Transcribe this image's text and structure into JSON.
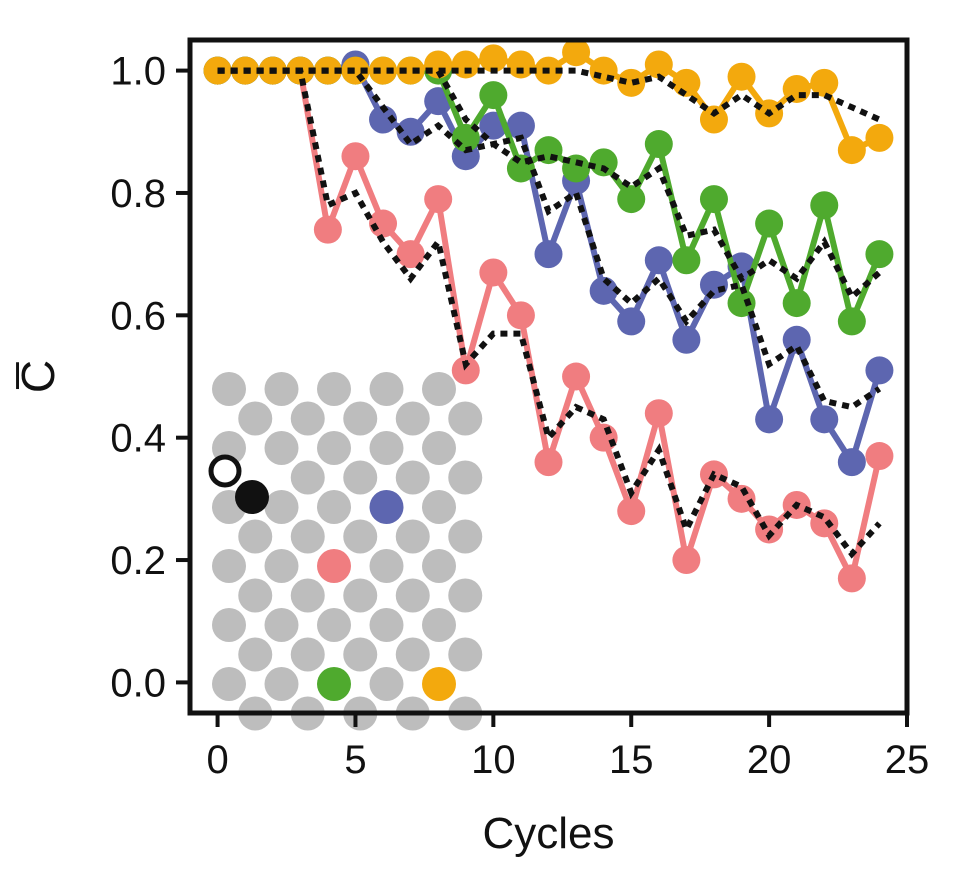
{
  "chart_data": {
    "type": "line",
    "title": "",
    "xlabel": "Cycles",
    "ylabel": "C̅",
    "xlim": [
      -1,
      25
    ],
    "ylim": [
      -0.05,
      1.05
    ],
    "xticks": [
      0,
      5,
      10,
      15,
      20,
      25
    ],
    "yticks": [
      0.0,
      0.2,
      0.4,
      0.6,
      0.8,
      1.0
    ],
    "xtick_labels": [
      "0",
      "5",
      "10",
      "15",
      "20",
      "25"
    ],
    "ytick_labels": [
      "0.0",
      "0.2",
      "0.4",
      "0.6",
      "0.8",
      "1.0"
    ],
    "grid": false,
    "legend": "none",
    "x": [
      0,
      1,
      2,
      3,
      4,
      5,
      6,
      7,
      8,
      9,
      10,
      11,
      12,
      13,
      14,
      15,
      16,
      17,
      18,
      19,
      20,
      21,
      22,
      23,
      24
    ],
    "series": [
      {
        "color": "#f07d80",
        "values": [
          1.0,
          1.0,
          1.0,
          1.0,
          0.74,
          0.86,
          0.75,
          0.7,
          0.79,
          0.51,
          0.67,
          0.6,
          0.36,
          0.5,
          0.4,
          0.28,
          0.44,
          0.2,
          0.34,
          0.3,
          0.25,
          0.29,
          0.26,
          0.17,
          0.37
        ],
        "fit": [
          1.0,
          1.0,
          1.0,
          1.0,
          0.78,
          0.8,
          0.72,
          0.66,
          0.72,
          0.52,
          0.57,
          0.57,
          0.4,
          0.45,
          0.43,
          0.31,
          0.38,
          0.25,
          0.34,
          0.32,
          0.24,
          0.29,
          0.27,
          0.21,
          0.26
        ]
      },
      {
        "color": "#5d66b0",
        "values": [
          1.0,
          1.0,
          1.0,
          1.0,
          1.0,
          1.01,
          0.92,
          0.9,
          0.95,
          0.86,
          0.91,
          0.91,
          0.7,
          0.82,
          0.64,
          0.59,
          0.69,
          0.56,
          0.65,
          0.68,
          0.43,
          0.56,
          0.43,
          0.36,
          0.51
        ],
        "fit": [
          1.0,
          1.0,
          1.0,
          1.0,
          1.0,
          1.0,
          0.94,
          0.88,
          0.91,
          0.87,
          0.88,
          0.89,
          0.77,
          0.8,
          0.66,
          0.62,
          0.66,
          0.59,
          0.64,
          0.65,
          0.52,
          0.55,
          0.46,
          0.45,
          0.48
        ]
      },
      {
        "color": "#4faa2e",
        "values": [
          1.0,
          1.0,
          1.0,
          1.0,
          1.0,
          1.0,
          1.0,
          1.0,
          1.0,
          0.89,
          0.96,
          0.84,
          0.87,
          0.84,
          0.85,
          0.79,
          0.88,
          0.69,
          0.79,
          0.62,
          0.75,
          0.62,
          0.78,
          0.59,
          0.7
        ],
        "fit": [
          1.0,
          1.0,
          1.0,
          1.0,
          1.0,
          1.0,
          1.0,
          1.0,
          1.0,
          0.92,
          0.88,
          0.85,
          0.86,
          0.85,
          0.84,
          0.81,
          0.84,
          0.73,
          0.74,
          0.66,
          0.69,
          0.66,
          0.72,
          0.63,
          0.67
        ]
      },
      {
        "color": "#f3a90d",
        "values": [
          1.0,
          1.0,
          1.0,
          1.0,
          1.0,
          1.0,
          1.0,
          1.0,
          1.01,
          1.01,
          1.02,
          1.01,
          1.0,
          1.03,
          1.0,
          0.98,
          1.01,
          0.98,
          0.92,
          0.99,
          0.93,
          0.97,
          0.98,
          0.87,
          0.89
        ],
        "fit": [
          1.0,
          1.0,
          1.0,
          1.0,
          1.0,
          1.0,
          1.0,
          1.0,
          1.0,
          1.0,
          1.0,
          1.0,
          1.0,
          1.0,
          0.99,
          0.98,
          0.99,
          0.96,
          0.93,
          0.96,
          0.93,
          0.96,
          0.96,
          0.94,
          0.92
        ]
      }
    ],
    "fit_style": "black dotted"
  },
  "inset": {
    "grid_color": "#bdbdbd",
    "open_circle_color": "#111111",
    "black_circle_color": "#111111",
    "markers": [
      {
        "color": "#5d66b0",
        "col": 3,
        "row": 2
      },
      {
        "color": "#f07d80",
        "col": 2,
        "row": 3
      },
      {
        "color": "#4faa2e",
        "col": 2,
        "row": 5
      },
      {
        "color": "#f3a90d",
        "col": 4,
        "row": 5
      }
    ]
  }
}
